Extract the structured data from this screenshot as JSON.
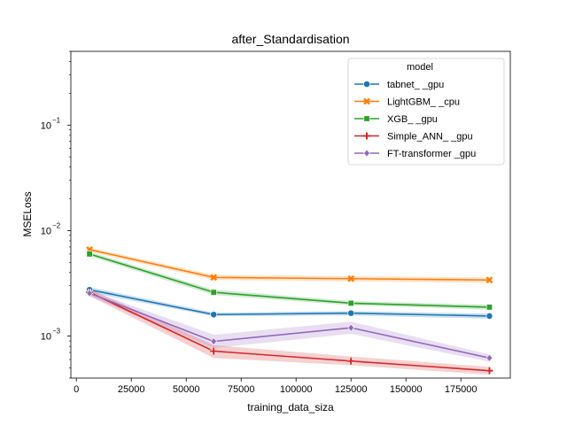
{
  "chart_data": {
    "type": "line",
    "title": "after_Standardisation",
    "xlabel": "training_data_siza",
    "ylabel": "MSELoss",
    "xscale": "linear",
    "yscale": "log",
    "xlim": [
      -2500,
      197500
    ],
    "ylim": [
      0.0004,
      0.5
    ],
    "x_ticks": [
      0,
      25000,
      50000,
      75000,
      100000,
      125000,
      150000,
      175000
    ],
    "x_tick_labels": [
      "0",
      "25000",
      "50000",
      "75000",
      "100000",
      "125000",
      "150000",
      "175000"
    ],
    "y_ticks": [
      0.001,
      0.01,
      0.1
    ],
    "y_tick_bases": [
      "10",
      "10",
      "10"
    ],
    "y_tick_exponents": [
      "−3",
      "−2",
      "−1"
    ],
    "grid": false,
    "legend": {
      "title": "model",
      "position": "top-right"
    },
    "x": [
      6000,
      62500,
      125000,
      188000
    ],
    "series": [
      {
        "name": "tabnet_ _gpu",
        "color": "#1f77b4",
        "marker": "circle",
        "values": [
          0.00275,
          0.0016,
          0.00165,
          0.00155
        ],
        "band_low": [
          0.00258,
          0.00154,
          0.00157,
          0.00146
        ],
        "band_high": [
          0.00292,
          0.00167,
          0.00173,
          0.00164
        ]
      },
      {
        "name": "LightGBM_ _cpu",
        "color": "#ff7f0e",
        "marker": "x",
        "values": [
          0.0066,
          0.0036,
          0.0035,
          0.0034
        ],
        "band_low": [
          0.0063,
          0.0034,
          0.0033,
          0.0032
        ],
        "band_high": [
          0.0069,
          0.0038,
          0.0037,
          0.0036
        ]
      },
      {
        "name": "XGB_ _gpu",
        "color": "#2ca02c",
        "marker": "square",
        "values": [
          0.006,
          0.0026,
          0.00205,
          0.00188
        ],
        "band_low": [
          0.0057,
          0.00245,
          0.00196,
          0.00178
        ],
        "band_high": [
          0.0063,
          0.00275,
          0.00215,
          0.00198
        ]
      },
      {
        "name": "Simple_ANN_ _gpu",
        "color": "#d62728",
        "marker": "plus",
        "values": [
          0.0026,
          0.00072,
          0.00058,
          0.00047
        ],
        "band_low": [
          0.0024,
          0.00062,
          0.00053,
          0.00043
        ],
        "band_high": [
          0.0028,
          0.00082,
          0.00064,
          0.00051
        ]
      },
      {
        "name": "FT-transformer _gpu",
        "color": "#9467bd",
        "marker": "diamond",
        "values": [
          0.00255,
          0.00089,
          0.0012,
          0.00062
        ],
        "band_low": [
          0.0024,
          0.00077,
          0.00105,
          0.00057
        ],
        "band_high": [
          0.0027,
          0.00103,
          0.00137,
          0.00067
        ]
      }
    ]
  }
}
